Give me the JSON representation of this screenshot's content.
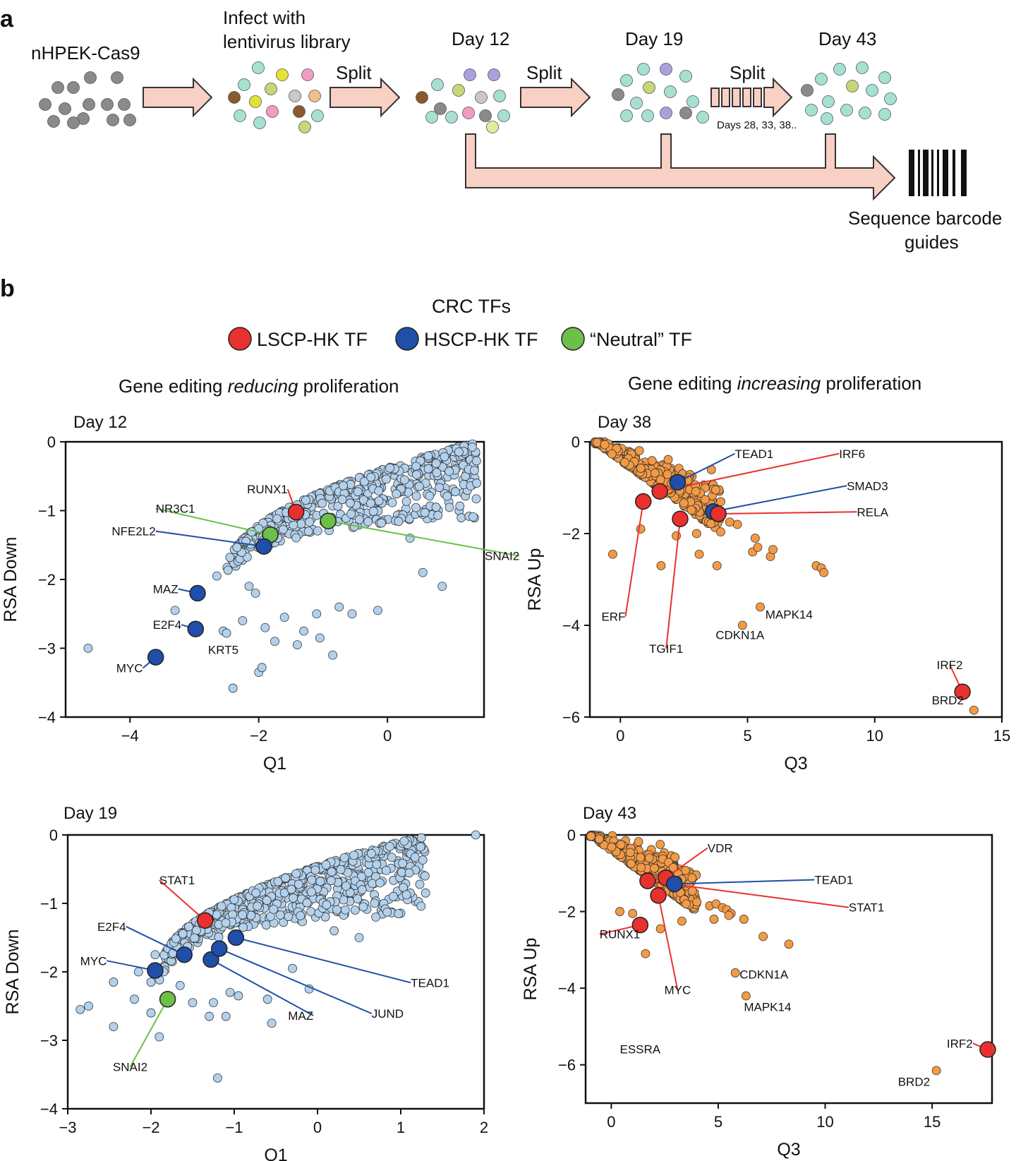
{
  "figure": {
    "panel_a_label": "a",
    "panel_b_label": "b",
    "cell_line": "nHPEK-Cas9",
    "infect_line1": "Infect with",
    "infect_line2": "lentivirus library",
    "split_label": "Split",
    "day12": "Day 12",
    "day19": "Day 19",
    "day43": "Day  43",
    "days_note": "Days 28, 33, 38..",
    "seq_line1": "Sequence barcode",
    "seq_line2": "guides",
    "legend_title": "CRC TFs",
    "legend": [
      {
        "label": "LSCP-HK TF",
        "color": "#e8312e"
      },
      {
        "label": "HSCP-HK TF",
        "color": "#1f4fa8"
      },
      {
        "label": "“Neutral” TF",
        "color": "#6cc04a"
      }
    ],
    "left_subtitle_pre": "Gene editing ",
    "left_subtitle_em": "reducing",
    "left_subtitle_post": " proliferation",
    "right_subtitle_pre": "Gene editing ",
    "right_subtitle_em": "increasing",
    "right_subtitle_post": " proliferation"
  },
  "colors": {
    "red": "#e8312e",
    "blue": "#1f4fa8",
    "green": "#6cc04a",
    "light_blue_point": "#b3d1ec",
    "orange_point": "#f39a45",
    "arrow_fill": "#f9d0c4",
    "cells_gray": "#8a8a8a",
    "cells_teal": "#a6e0d2",
    "cells_yellow": "#e2e23a",
    "cells_pink": "#f09cc2",
    "cells_olive": "#c6d67a",
    "cells_lightgray": "#c8c8c8",
    "cells_peach": "#efbf8e",
    "cells_brown": "#8a5a2e",
    "cells_purple": "#a8a2dc",
    "cells_lime": "#e0ec9c"
  },
  "chart_data": [
    {
      "id": "day12",
      "type": "scatter",
      "title": "Day 12",
      "xlabel": "Q1",
      "ylabel": "RSA Down",
      "xlim": [
        -5,
        1.5
      ],
      "ylim": [
        -4,
        0
      ],
      "xticks": [
        -4,
        -2,
        0
      ],
      "xtick_labels": [
        "−4",
        "−2",
        "0"
      ],
      "yticks": [
        0,
        -1,
        -2,
        -3,
        -4
      ],
      "ytick_labels": [
        "0",
        "−1",
        "−2",
        "−3",
        "−4"
      ],
      "point_color": "light_blue_point",
      "cloud": {
        "x_min": -2.5,
        "x_max": 1.4,
        "y_at_x_min": -1.9,
        "y_top": 0.0,
        "count": 560,
        "seed": 12
      },
      "scattered_points": [
        [
          -4.65,
          -3.0
        ],
        [
          -3.3,
          -2.45
        ],
        [
          -2.55,
          -2.75
        ],
        [
          -2.5,
          -2.78
        ],
        [
          -2.4,
          -3.58
        ],
        [
          -2.25,
          -2.6
        ],
        [
          -2.15,
          -2.1
        ],
        [
          -2.0,
          -3.35
        ],
        [
          -1.95,
          -3.28
        ],
        [
          -1.9,
          -2.7
        ],
        [
          -1.75,
          -2.9
        ],
        [
          -1.6,
          -2.55
        ],
        [
          -1.4,
          -2.95
        ],
        [
          -1.3,
          -2.75
        ],
        [
          -1.1,
          -2.5
        ],
        [
          -1.05,
          -2.85
        ],
        [
          -0.85,
          -3.1
        ],
        [
          -0.75,
          -2.4
        ],
        [
          -0.55,
          -2.5
        ],
        [
          -0.15,
          -2.45
        ],
        [
          0.55,
          -1.9
        ],
        [
          0.35,
          -1.4
        ],
        [
          0.85,
          -2.1
        ],
        [
          -2.05,
          -2.2
        ],
        [
          -2.65,
          -1.95
        ]
      ],
      "highlights": [
        {
          "x": -1.42,
          "y": -1.02,
          "color": "red",
          "label": "RUNX1",
          "label_x": -1.55,
          "label_y": -0.75,
          "anchor": "end"
        },
        {
          "x": -0.92,
          "y": -1.15,
          "color": "green",
          "label": "SNAI2",
          "label_x": 2.05,
          "label_y": -1.72,
          "anchor": "end"
        },
        {
          "x": -1.82,
          "y": -1.35,
          "color": "green",
          "label": "NR3C1",
          "label_x": -3.6,
          "label_y": -1.03,
          "anchor": "start"
        },
        {
          "x": -1.92,
          "y": -1.52,
          "color": "blue",
          "label": "NFE2L2",
          "label_x": -3.6,
          "label_y": -1.36,
          "anchor": "end"
        },
        {
          "x": -2.95,
          "y": -2.2,
          "color": "blue",
          "label": "MAZ",
          "label_x": -3.25,
          "label_y": -2.2,
          "anchor": "end"
        },
        {
          "x": -2.98,
          "y": -2.72,
          "color": "blue",
          "label": "E2F4",
          "label_x": -3.2,
          "label_y": -2.72,
          "anchor": "end"
        },
        {
          "x": -3.6,
          "y": -3.13,
          "color": "blue",
          "label": "MYC",
          "label_x": -3.8,
          "label_y": -3.35,
          "anchor": "end"
        },
        {
          "x": -2.55,
          "y": -2.82,
          "color": "none",
          "label": "KRT5",
          "label_x": -2.55,
          "label_y": -3.08,
          "anchor": "middle"
        }
      ]
    },
    {
      "id": "day38",
      "type": "scatter",
      "title": "Day 38",
      "xlabel": "Q3",
      "ylabel": "RSA Up",
      "xlim": [
        -1.2,
        15
      ],
      "ylim": [
        -6,
        0
      ],
      "xticks": [
        0,
        5,
        10,
        15
      ],
      "xtick_labels": [
        "0",
        "5",
        "10",
        "15"
      ],
      "yticks": [
        0,
        -2,
        -4,
        -6
      ],
      "ytick_labels": [
        "0",
        "−2",
        "−4",
        "−6"
      ],
      "point_color": "orange_point",
      "cloud": {
        "x_min": -1.0,
        "x_max": 4.0,
        "y_at_x_min": 0.0,
        "y_top": -2.0,
        "count": 360,
        "seed": 38
      },
      "scattered_points": [
        [
          4.6,
          -1.8
        ],
        [
          4.3,
          -1.75
        ],
        [
          5.3,
          -2.1
        ],
        [
          5.2,
          -2.4
        ],
        [
          5.4,
          -2.3
        ],
        [
          5.9,
          -2.5
        ],
        [
          6.0,
          -2.35
        ],
        [
          7.7,
          -2.7
        ],
        [
          7.9,
          -2.75
        ],
        [
          8.0,
          -2.85
        ],
        [
          5.5,
          -3.6
        ],
        [
          4.8,
          -4.0
        ],
        [
          13.9,
          -5.85
        ],
        [
          -0.3,
          -2.45
        ],
        [
          1.6,
          -2.7
        ],
        [
          3.1,
          -2.45
        ],
        [
          3.8,
          -2.7
        ],
        [
          2.2,
          -2.05
        ],
        [
          3.0,
          -2.0
        ],
        [
          0.8,
          -1.9
        ]
      ],
      "highlights": [
        {
          "x": 2.25,
          "y": -0.88,
          "color": "blue",
          "label": "TEAD1",
          "label_x": 4.5,
          "label_y": -0.35,
          "anchor": "start"
        },
        {
          "x": 1.55,
          "y": -1.08,
          "color": "red",
          "label": "IRF6",
          "label_x": 8.6,
          "label_y": -0.35,
          "anchor": "start"
        },
        {
          "x": 3.65,
          "y": -1.52,
          "color": "blue",
          "label": "SMAD3",
          "label_x": 8.9,
          "label_y": -1.05,
          "anchor": "start"
        },
        {
          "x": 3.85,
          "y": -1.57,
          "color": "red",
          "label": "RELA",
          "label_x": 9.3,
          "label_y": -1.62,
          "anchor": "start"
        },
        {
          "x": 0.9,
          "y": -1.3,
          "color": "red",
          "label": "ERF",
          "label_x": 0.2,
          "label_y": -3.9,
          "anchor": "end"
        },
        {
          "x": 2.35,
          "y": -1.68,
          "color": "red",
          "label": "TGIF1",
          "label_x": 1.8,
          "label_y": -4.6,
          "anchor": "middle"
        },
        {
          "x": 13.45,
          "y": -5.45,
          "color": "red",
          "label": "IRF2",
          "label_x": 12.95,
          "label_y": -4.95,
          "anchor": "middle"
        },
        {
          "x": 13.9,
          "y": -5.85,
          "color": "none",
          "label": "BRD2",
          "label_x": 13.5,
          "label_y": -5.72,
          "anchor": "end"
        },
        {
          "x": 5.5,
          "y": -3.6,
          "color": "none",
          "label": "MAPK14",
          "label_x": 5.7,
          "label_y": -3.85,
          "anchor": "start"
        },
        {
          "x": 4.8,
          "y": -4.0,
          "color": "none",
          "label": "CDKN1A",
          "label_x": 4.7,
          "label_y": -4.3,
          "anchor": "middle"
        }
      ]
    },
    {
      "id": "day19",
      "type": "scatter",
      "title": "Day 19",
      "xlabel": "Q1",
      "ylabel": "RSA Down",
      "xlim": [
        -3,
        2
      ],
      "ylim": [
        -4,
        0
      ],
      "xticks": [
        -3,
        -2,
        -1,
        0,
        1,
        2
      ],
      "xtick_labels": [
        "−3",
        "−2",
        "−1",
        "0",
        "1",
        "2"
      ],
      "yticks": [
        0,
        -1,
        -2,
        -3,
        -4
      ],
      "ytick_labels": [
        "0",
        "−1",
        "−2",
        "−3",
        "−4"
      ],
      "point_color": "light_blue_point",
      "cloud": {
        "x_min": -1.9,
        "x_max": 1.3,
        "y_at_x_min": -2.0,
        "y_top": 0.0,
        "count": 600,
        "seed": 19
      },
      "scattered_points": [
        [
          -2.85,
          -2.55
        ],
        [
          -2.75,
          -2.5
        ],
        [
          -2.45,
          -2.8
        ],
        [
          -2.45,
          -2.15
        ],
        [
          -2.2,
          -2.4
        ],
        [
          -2.15,
          -2.0
        ],
        [
          -2.0,
          -2.6
        ],
        [
          -1.9,
          -2.95
        ],
        [
          -1.95,
          -1.75
        ],
        [
          -1.65,
          -2.2
        ],
        [
          -1.5,
          -2.45
        ],
        [
          -1.3,
          -2.65
        ],
        [
          -1.25,
          -2.45
        ],
        [
          -1.1,
          -2.65
        ],
        [
          -1.05,
          -2.3
        ],
        [
          -0.95,
          -2.35
        ],
        [
          -0.6,
          -2.4
        ],
        [
          -0.55,
          -2.75
        ],
        [
          -1.2,
          -3.55
        ],
        [
          -0.1,
          -2.25
        ],
        [
          -0.3,
          -1.95
        ],
        [
          0.2,
          -1.4
        ],
        [
          0.5,
          -1.5
        ],
        [
          0.7,
          -1.2
        ],
        [
          0.75,
          -0.7
        ],
        [
          0.55,
          -1.05
        ],
        [
          1.9,
          0.0
        ],
        [
          -2.0,
          -2.15
        ]
      ],
      "highlights": [
        {
          "x": -1.35,
          "y": -1.25,
          "color": "red",
          "label": "STAT1",
          "label_x": -1.9,
          "label_y": -0.72,
          "anchor": "start"
        },
        {
          "x": -1.6,
          "y": -1.75,
          "color": "blue",
          "label": "E2F4",
          "label_x": -2.3,
          "label_y": -1.4,
          "anchor": "end"
        },
        {
          "x": -1.95,
          "y": -1.98,
          "color": "blue",
          "label": "MYC",
          "label_x": -2.53,
          "label_y": -1.9,
          "anchor": "end"
        },
        {
          "x": -1.28,
          "y": -1.82,
          "color": "blue",
          "label": "MAZ",
          "label_x": -0.05,
          "label_y": -2.7,
          "anchor": "end"
        },
        {
          "x": -1.18,
          "y": -1.66,
          "color": "blue",
          "label": "JUND",
          "label_x": 0.65,
          "label_y": -2.67,
          "anchor": "start"
        },
        {
          "x": -0.98,
          "y": -1.5,
          "color": "blue",
          "label": "TEAD1",
          "label_x": 1.12,
          "label_y": -2.22,
          "anchor": "start"
        },
        {
          "x": -1.8,
          "y": -2.4,
          "color": "green",
          "label": "SNAI2",
          "label_x": -2.25,
          "label_y": -3.45,
          "anchor": "middle"
        }
      ]
    },
    {
      "id": "day43",
      "type": "scatter",
      "title": "Day 43",
      "xlabel": "Q3",
      "ylabel": "RSA Up",
      "xlim": [
        -1.2,
        17.8
      ],
      "ylim": [
        -7,
        0
      ],
      "xticks": [
        0,
        5,
        10,
        15
      ],
      "xtick_labels": [
        "0",
        "5",
        "10",
        "15"
      ],
      "yticks": [
        0,
        -2,
        -4,
        -6
      ],
      "ytick_labels": [
        "0",
        "−2",
        "−4",
        "−6"
      ],
      "point_color": "orange_point",
      "cloud": {
        "x_min": -1.0,
        "x_max": 4.0,
        "y_at_x_min": 0.0,
        "y_top": -2.0,
        "count": 380,
        "seed": 43
      },
      "scattered_points": [
        [
          3.5,
          -1.8
        ],
        [
          4.0,
          -1.75
        ],
        [
          4.6,
          -1.85
        ],
        [
          4.9,
          -1.8
        ],
        [
          5.2,
          -1.9
        ],
        [
          5.4,
          -1.95
        ],
        [
          5.6,
          -2.05
        ],
        [
          4.8,
          -2.2
        ],
        [
          5.5,
          -2.1
        ],
        [
          6.2,
          -2.2
        ],
        [
          7.1,
          -2.65
        ],
        [
          8.3,
          -2.85
        ],
        [
          5.8,
          -3.6
        ],
        [
          6.3,
          -4.2
        ],
        [
          15.2,
          -6.15
        ],
        [
          1.6,
          -3.1
        ],
        [
          2.3,
          -2.45
        ],
        [
          3.3,
          -2.25
        ],
        [
          0.4,
          -2.0
        ],
        [
          1.0,
          -2.05
        ]
      ],
      "highlights": [
        {
          "x": 2.55,
          "y": -1.12,
          "color": "red",
          "label": "VDR",
          "label_x": 4.5,
          "label_y": -0.45,
          "anchor": "start"
        },
        {
          "x": 2.95,
          "y": -1.28,
          "color": "blue",
          "label": "TEAD1",
          "label_x": 9.5,
          "label_y": -1.28,
          "anchor": "start"
        },
        {
          "x": 1.7,
          "y": -1.2,
          "color": "red",
          "label": "STAT1",
          "label_x": 11.1,
          "label_y": -2.0,
          "anchor": "start"
        },
        {
          "x": 2.2,
          "y": -1.58,
          "color": "red",
          "label": "MYC",
          "label_x": 3.1,
          "label_y": -4.15,
          "anchor": "middle"
        },
        {
          "x": 1.35,
          "y": -2.35,
          "color": "red",
          "label": "RUNX1",
          "label_x": -0.55,
          "label_y": -2.7,
          "anchor": "start"
        },
        {
          "x": 1.35,
          "y": -2.35,
          "color": "none",
          "label": "ESSRA",
          "label_x": 1.35,
          "label_y": -5.7,
          "anchor": "middle"
        },
        {
          "x": 17.6,
          "y": -5.6,
          "color": "red",
          "label": "IRF2",
          "label_x": 16.9,
          "label_y": -5.55,
          "anchor": "end"
        },
        {
          "x": 15.2,
          "y": -6.15,
          "color": "none",
          "label": "BRD2",
          "label_x": 14.9,
          "label_y": -6.55,
          "anchor": "end"
        },
        {
          "x": 5.8,
          "y": -3.6,
          "color": "none",
          "label": "CDKN1A",
          "label_x": 6.0,
          "label_y": -3.75,
          "anchor": "start"
        },
        {
          "x": 6.3,
          "y": -4.2,
          "color": "none",
          "label": "MAPK14",
          "label_x": 6.2,
          "label_y": -4.6,
          "anchor": "start"
        }
      ]
    }
  ]
}
